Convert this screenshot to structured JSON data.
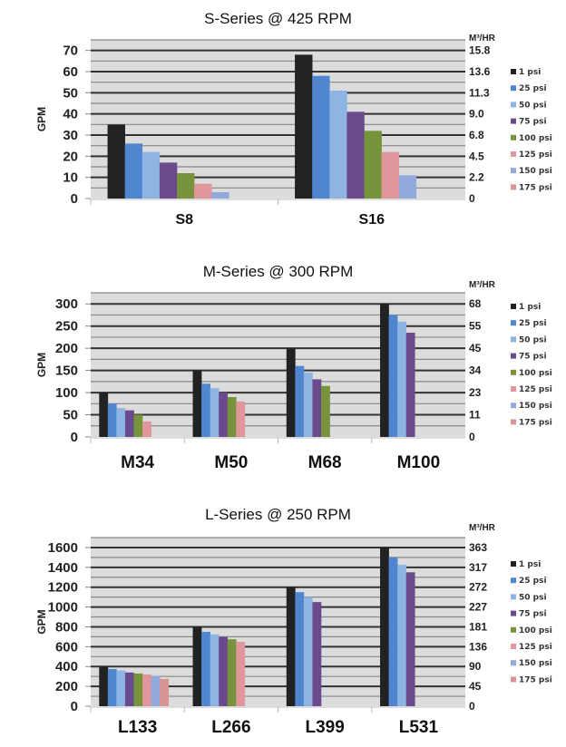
{
  "chart_data": [
    {
      "type": "bar",
      "title": "S-Series @ 425 RPM",
      "ylabel": "GPM",
      "y2label": "M³/HR",
      "categories": [
        "S8",
        "S16"
      ],
      "yticks": [
        "0",
        "10",
        "20",
        "30",
        "40",
        "50",
        "60",
        "70"
      ],
      "ytick_values": [
        0,
        10,
        20,
        30,
        40,
        50,
        60,
        70
      ],
      "y2ticks": [
        "0",
        "2.2",
        "4.5",
        "6.8",
        "9.0",
        "11.3",
        "13.6",
        "15.8"
      ],
      "ylim": [
        0,
        75
      ],
      "grid_step": 5,
      "series": [
        {
          "name": "1 psi",
          "color": "#222222",
          "values": [
            35,
            68
          ]
        },
        {
          "name": "25 psi",
          "color": "#4f86cf",
          "values": [
            26,
            58
          ]
        },
        {
          "name": "50 psi",
          "color": "#8db4e2",
          "values": [
            22,
            51
          ]
        },
        {
          "name": "75 psi",
          "color": "#6a4a8c",
          "values": [
            17,
            41
          ]
        },
        {
          "name": "100 psi",
          "color": "#77933c",
          "values": [
            12,
            32
          ]
        },
        {
          "name": "125 psi",
          "color": "#e0969a",
          "values": [
            7,
            22
          ]
        },
        {
          "name": "150 psi",
          "color": "#92a9dc",
          "values": [
            3,
            11
          ]
        },
        {
          "name": "175 psi",
          "color": "#d99594",
          "values": [
            null,
            null
          ]
        }
      ],
      "legend": "right",
      "grid": true
    },
    {
      "type": "bar",
      "title": "M-Series @ 300 RPM",
      "ylabel": "GPM",
      "y2label": "M³/HR",
      "categories": [
        "M34",
        "M50",
        "M68",
        "M100"
      ],
      "yticks": [
        "0",
        "50",
        "100",
        "150",
        "200",
        "250",
        "300"
      ],
      "ytick_values": [
        0,
        50,
        100,
        150,
        200,
        250,
        300
      ],
      "y2ticks": [
        "0",
        "11",
        "23",
        "34",
        "45",
        "55",
        "68"
      ],
      "ylim": [
        0,
        325
      ],
      "grid_step": 25,
      "series": [
        {
          "name": "1 psi",
          "color": "#222222",
          "values": [
            100,
            150,
            200,
            300
          ]
        },
        {
          "name": "25 psi",
          "color": "#4f86cf",
          "values": [
            75,
            120,
            160,
            275
          ]
        },
        {
          "name": "50 psi",
          "color": "#8db4e2",
          "values": [
            65,
            110,
            145,
            260
          ]
        },
        {
          "name": "75 psi",
          "color": "#6a4a8c",
          "values": [
            60,
            100,
            130,
            235
          ]
        },
        {
          "name": "100 psi",
          "color": "#77933c",
          "values": [
            50,
            90,
            115,
            null
          ]
        },
        {
          "name": "125 psi",
          "color": "#e0969a",
          "values": [
            35,
            80,
            null,
            null
          ]
        },
        {
          "name": "150 psi",
          "color": "#92a9dc",
          "values": [
            null,
            null,
            null,
            null
          ]
        },
        {
          "name": "175 psi",
          "color": "#d99594",
          "values": [
            null,
            null,
            null,
            null
          ]
        }
      ],
      "legend": "right",
      "grid": true
    },
    {
      "type": "bar",
      "title": "L-Series @ 250 RPM",
      "ylabel": "GPM",
      "y2label": "M³/HR",
      "categories": [
        "L133",
        "L266",
        "L399",
        "L531"
      ],
      "yticks": [
        "0",
        "200",
        "400",
        "600",
        "800",
        "1000",
        "1200",
        "1400",
        "1600"
      ],
      "ytick_values": [
        0,
        200,
        400,
        600,
        800,
        1000,
        1200,
        1400,
        1600
      ],
      "y2ticks": [
        "0",
        "45",
        "90",
        "136",
        "181",
        "227",
        "272",
        "317",
        "363"
      ],
      "ylim": [
        0,
        1700
      ],
      "grid_step": 100,
      "series": [
        {
          "name": "1 psi",
          "color": "#222222",
          "values": [
            400,
            800,
            1200,
            1600
          ]
        },
        {
          "name": "25 psi",
          "color": "#4f86cf",
          "values": [
            375,
            750,
            1150,
            1500
          ]
        },
        {
          "name": "50 psi",
          "color": "#8db4e2",
          "values": [
            360,
            725,
            1100,
            1425
          ]
        },
        {
          "name": "75 psi",
          "color": "#6a4a8c",
          "values": [
            340,
            700,
            1050,
            1350
          ]
        },
        {
          "name": "100 psi",
          "color": "#77933c",
          "values": [
            330,
            675,
            null,
            null
          ]
        },
        {
          "name": "125 psi",
          "color": "#e0969a",
          "values": [
            320,
            650,
            null,
            null
          ]
        },
        {
          "name": "150 psi",
          "color": "#92a9dc",
          "values": [
            305,
            null,
            null,
            null
          ]
        },
        {
          "name": "175 psi",
          "color": "#d99594",
          "values": [
            275,
            null,
            null,
            null
          ]
        }
      ],
      "legend": "right",
      "grid": true
    }
  ]
}
